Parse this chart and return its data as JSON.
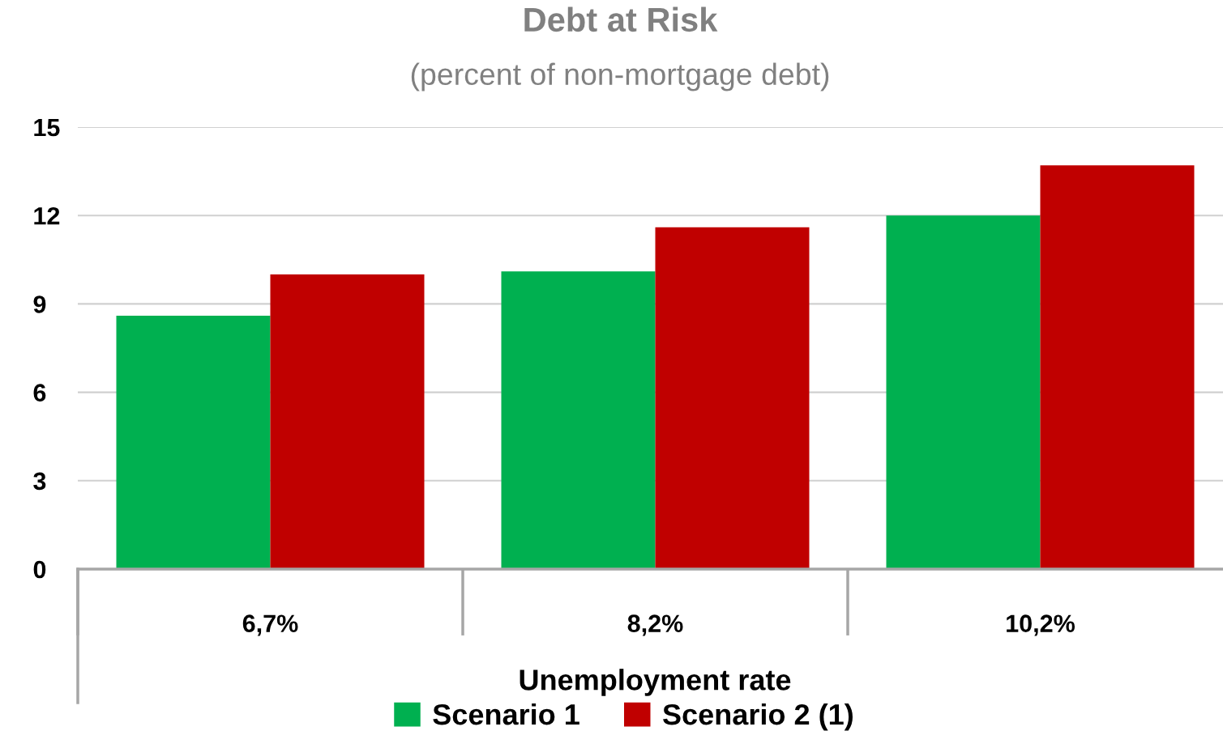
{
  "chart_data": {
    "type": "bar",
    "title": "Debt at Risk",
    "subtitle": "(percent of non-mortgage debt)",
    "xlabel": "Unemployment rate",
    "categories": [
      "6,7%",
      "8,2%",
      "10,2%"
    ],
    "series": [
      {
        "name": "Scenario 1",
        "color": "#00b050",
        "values": [
          8.6,
          10.1,
          12.0
        ]
      },
      {
        "name": "Scenario 2 (1)",
        "color": "#c00000",
        "values": [
          10.0,
          11.6,
          13.7
        ]
      }
    ],
    "ylim": [
      0,
      15
    ],
    "yticks": [
      0,
      3,
      6,
      9,
      12,
      15
    ],
    "grid": "y",
    "legend": "bottom"
  }
}
